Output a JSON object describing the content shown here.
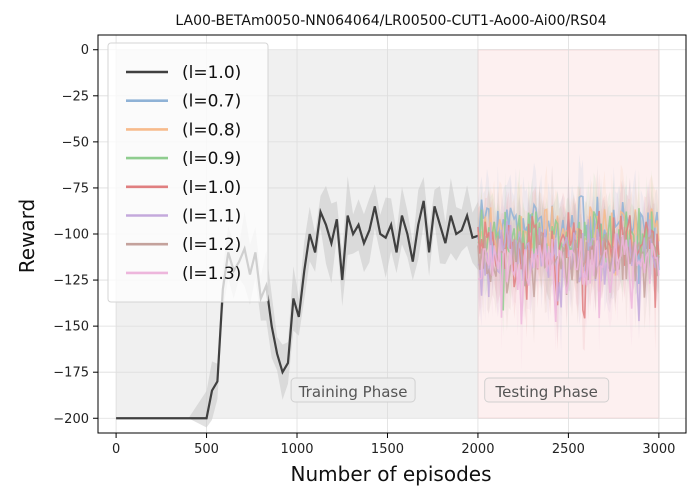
{
  "chart_data": {
    "type": "line",
    "title": "LA00-BETAm0050-NN064064/LR00500-CUT1-Ao00-Ai00/RS04",
    "xlabel": "Number of episodes",
    "ylabel": "Reward",
    "xlim": [
      -100,
      3150
    ],
    "ylim": [
      -208,
      8
    ],
    "xticks": [
      0,
      500,
      1000,
      1500,
      2000,
      2500,
      3000
    ],
    "yticks": [
      0,
      -25,
      -50,
      -75,
      -100,
      -125,
      -150,
      -175,
      -200
    ],
    "grid": true,
    "legend_position": "top-left",
    "phases": [
      {
        "label": "Training Phase",
        "x_start": 0,
        "x_end": 2000,
        "color": "#f0f0f0"
      },
      {
        "label": "Testing Phase",
        "x_start": 2000,
        "x_end": 3000,
        "color": "#fdf0f0"
      }
    ],
    "training": {
      "name": "(l=1.0)",
      "color": "#404040",
      "x": [
        0,
        100,
        200,
        300,
        400,
        500,
        530,
        560,
        590,
        620,
        650,
        680,
        710,
        740,
        770,
        800,
        830,
        860,
        890,
        920,
        950,
        980,
        1010,
        1040,
        1070,
        1100,
        1130,
        1160,
        1190,
        1220,
        1250,
        1280,
        1310,
        1340,
        1370,
        1400,
        1430,
        1460,
        1490,
        1520,
        1550,
        1580,
        1610,
        1640,
        1670,
        1700,
        1730,
        1760,
        1790,
        1820,
        1850,
        1880,
        1910,
        1940,
        1970,
        2000
      ],
      "y": [
        -200,
        -200,
        -200,
        -200,
        -200,
        -200,
        -185,
        -180,
        -130,
        -110,
        -120,
        -115,
        -108,
        -122,
        -110,
        -135,
        -128,
        -150,
        -165,
        -175,
        -170,
        -135,
        -145,
        -120,
        -100,
        -110,
        -88,
        -95,
        -105,
        -92,
        -125,
        -90,
        -100,
        -95,
        -105,
        -98,
        -85,
        -100,
        -102,
        -95,
        -110,
        -90,
        -100,
        -115,
        -95,
        -82,
        -110,
        -85,
        -95,
        -105,
        -90,
        -100,
        -98,
        -90,
        -102,
        -101
      ]
    },
    "series": [
      {
        "name": "(l=0.7)",
        "color": "#8fb2d6",
        "mean": -93,
        "amplitude": 12
      },
      {
        "name": "(l=0.8)",
        "color": "#f7bb8c",
        "mean": -99,
        "amplitude": 12
      },
      {
        "name": "(l=0.9)",
        "color": "#8fcd8f",
        "mean": -101,
        "amplitude": 13
      },
      {
        "name": "(l=1.0)",
        "color": "#e07f80",
        "mean": -105,
        "amplitude": 14
      },
      {
        "name": "(l=1.1)",
        "color": "#c4a9dc",
        "mean": -110,
        "amplitude": 14
      },
      {
        "name": "(l=1.2)",
        "color": "#c4a29c",
        "mean": -112,
        "amplitude": 13
      },
      {
        "name": "(l=1.3)",
        "color": "#edb6dc",
        "mean": -116,
        "amplitude": 13
      }
    ]
  }
}
